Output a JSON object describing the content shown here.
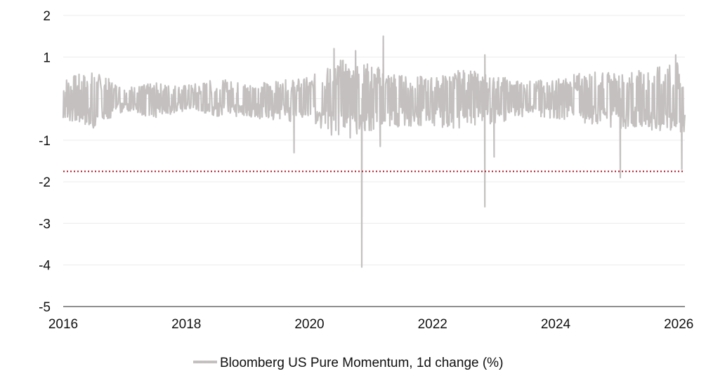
{
  "chart_data": {
    "type": "line",
    "title": "",
    "xlabel": "",
    "ylabel": "",
    "xlim": [
      2016.0,
      2026.1
    ],
    "ylim": [
      -5,
      2
    ],
    "grid": true,
    "legend_position": "bottom-center",
    "x_ticks": [
      "2016",
      "2018",
      "2020",
      "2022",
      "2024",
      "2026"
    ],
    "y_ticks": [
      "2",
      "1",
      "",
      "-1",
      "-2",
      "-3",
      "-4",
      "-5"
    ],
    "threshold_line": {
      "y": -1.75,
      "color": "#b3202e",
      "style": "dotted"
    },
    "series": [
      {
        "name": "Bloomberg US Pure Momentum, 1d change (%)",
        "color": "#c4c0c0",
        "envelope_points": [
          {
            "x": 2016.0,
            "high": 0.55,
            "low": -0.5
          },
          {
            "x": 2016.5,
            "high": 0.7,
            "low": -0.75
          },
          {
            "x": 2017.0,
            "high": 0.3,
            "low": -0.3
          },
          {
            "x": 2017.5,
            "high": 0.4,
            "low": -0.5
          },
          {
            "x": 2018.0,
            "high": 0.35,
            "low": -0.3
          },
          {
            "x": 2018.5,
            "high": 0.5,
            "low": -0.45
          },
          {
            "x": 2019.0,
            "high": 0.4,
            "low": -0.45
          },
          {
            "x": 2019.5,
            "high": 0.45,
            "low": -0.6
          },
          {
            "x": 2020.0,
            "high": 0.55,
            "low": -0.55
          },
          {
            "x": 2020.5,
            "high": 1.0,
            "low": -1.1
          },
          {
            "x": 2021.0,
            "high": 0.9,
            "low": -0.9
          },
          {
            "x": 2021.5,
            "high": 0.6,
            "low": -0.7
          },
          {
            "x": 2022.0,
            "high": 0.55,
            "low": -0.7
          },
          {
            "x": 2022.5,
            "high": 0.75,
            "low": -0.8
          },
          {
            "x": 2023.0,
            "high": 0.6,
            "low": -0.65
          },
          {
            "x": 2023.5,
            "high": 0.45,
            "low": -0.45
          },
          {
            "x": 2024.0,
            "high": 0.5,
            "low": -0.5
          },
          {
            "x": 2024.5,
            "high": 0.7,
            "low": -0.7
          },
          {
            "x": 2025.0,
            "high": 0.65,
            "low": -0.75
          },
          {
            "x": 2025.5,
            "high": 0.75,
            "low": -0.8
          },
          {
            "x": 2026.1,
            "high": 0.95,
            "low": -0.85
          }
        ],
        "notable_points": [
          {
            "x": 2019.75,
            "y": -1.3
          },
          {
            "x": 2020.4,
            "y": 1.2
          },
          {
            "x": 2020.75,
            "y": 1.15
          },
          {
            "x": 2020.85,
            "y": -4.05
          },
          {
            "x": 2021.2,
            "y": 1.5
          },
          {
            "x": 2021.15,
            "y": -1.15
          },
          {
            "x": 2022.85,
            "y": -2.6
          },
          {
            "x": 2022.85,
            "y": 1.05
          },
          {
            "x": 2023.0,
            "y": -1.4
          },
          {
            "x": 2025.05,
            "y": -1.9
          },
          {
            "x": 2025.95,
            "y": 1.05
          },
          {
            "x": 2026.05,
            "y": -1.7
          }
        ]
      }
    ]
  }
}
